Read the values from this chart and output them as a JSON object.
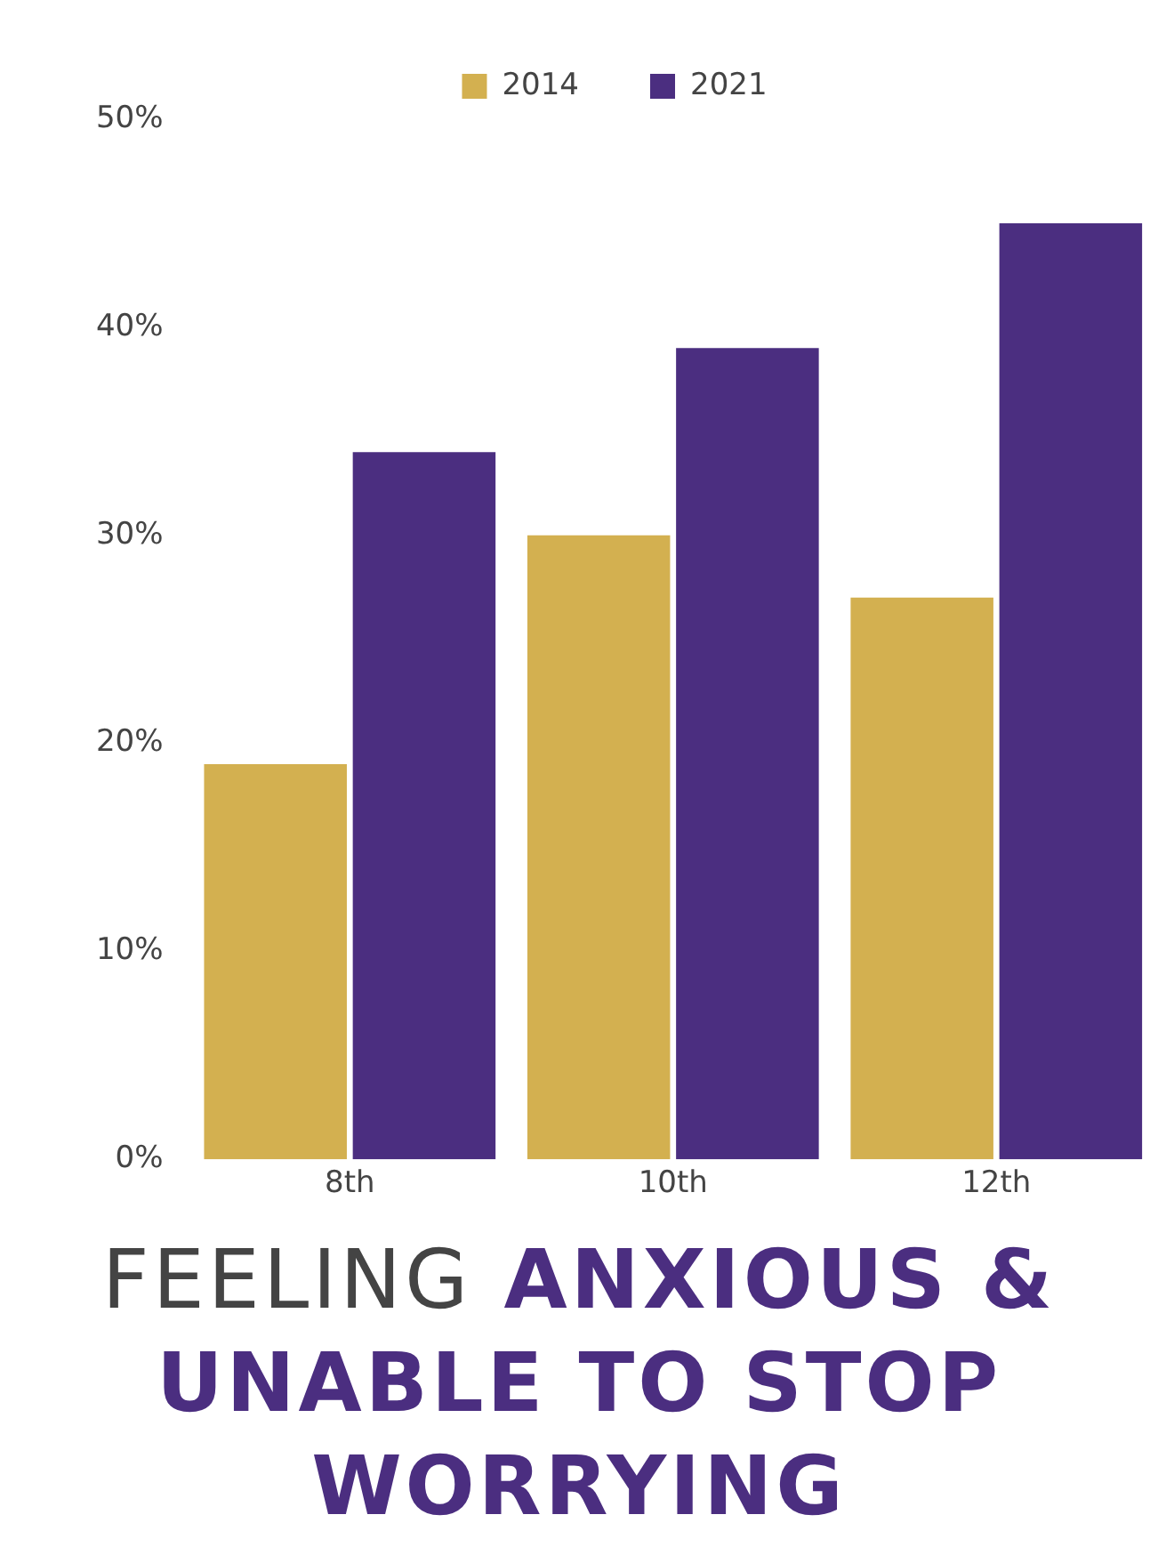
{
  "chart_data": {
    "type": "bar",
    "title": "FEELING ANXIOUS & UNABLE TO STOP WORRYING",
    "categories": [
      "8th",
      "10th",
      "12th"
    ],
    "series": [
      {
        "name": "2014",
        "color": "#d3b050",
        "values": [
          19,
          30,
          27
        ]
      },
      {
        "name": "2021",
        "color": "#4b2e80",
        "values": [
          34,
          39,
          45
        ]
      }
    ],
    "ylim": [
      0,
      50
    ],
    "yticks": [
      {
        "value": 0,
        "label": "0%"
      },
      {
        "value": 10,
        "label": "10%"
      },
      {
        "value": 20,
        "label": "20%"
      },
      {
        "value": 30,
        "label": "30%"
      },
      {
        "value": 40,
        "label": "40%"
      },
      {
        "value": 50,
        "label": "50%"
      }
    ],
    "grid": false,
    "legend": "top"
  }
}
